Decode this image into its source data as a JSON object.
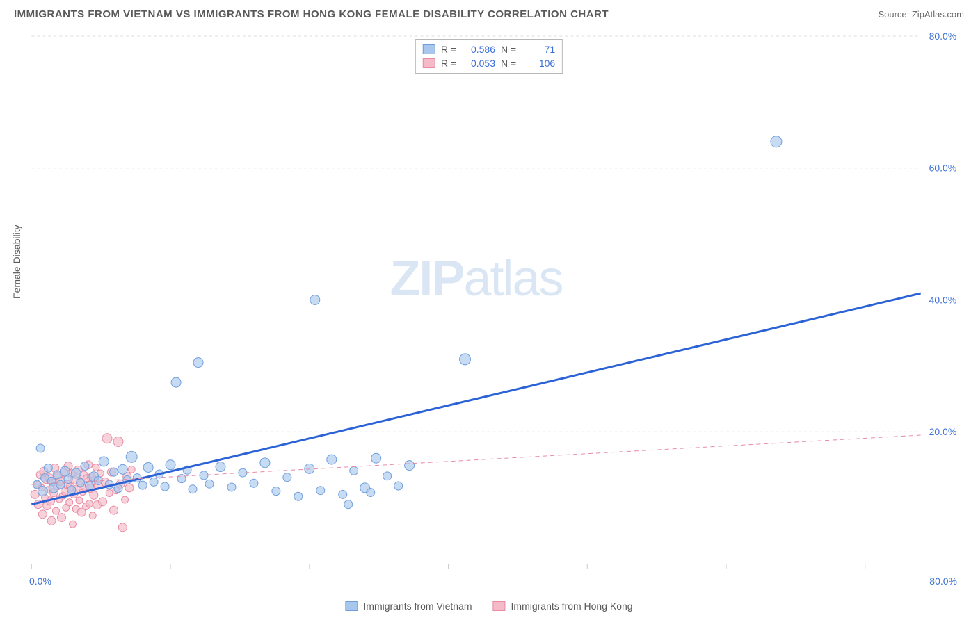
{
  "header": {
    "title": "IMMIGRANTS FROM VIETNAM VS IMMIGRANTS FROM HONG KONG FEMALE DISABILITY CORRELATION CHART",
    "source_prefix": "Source: ",
    "source_name": "ZipAtlas.com"
  },
  "chart": {
    "type": "scatter",
    "ylabel": "Female Disability",
    "watermark_a": "ZIP",
    "watermark_b": "atlas",
    "background_color": "#ffffff",
    "grid_color": "#dddddd",
    "axis_color": "#cccccc",
    "tick_label_color": "#3b6fd6",
    "xlim": [
      0,
      80
    ],
    "ylim": [
      0,
      80
    ],
    "xtick_origin": "0.0%",
    "xtick_max": "80.0%",
    "ytick_labels": [
      "20.0%",
      "40.0%",
      "60.0%",
      "80.0%"
    ],
    "ytick_values": [
      20,
      40,
      60,
      80
    ],
    "xtick_positions": [
      0,
      12.5,
      25,
      37.5,
      50,
      62.5,
      75
    ],
    "series": [
      {
        "name": "Immigrants from Vietnam",
        "key": "vietnam",
        "color_fill": "#a9c7ec",
        "color_stroke": "#6f9fdd",
        "marker_radius_range": [
          5,
          9
        ],
        "regression": {
          "R": "0.586",
          "N": "71",
          "line_color": "#2b63d6",
          "line_width": 3,
          "dash": "none",
          "y_at_x0": 9.0,
          "y_at_x80": 41.0
        },
        "points": [
          {
            "x": 0.5,
            "y": 12,
            "r": 6
          },
          {
            "x": 0.8,
            "y": 17.5,
            "r": 6
          },
          {
            "x": 1.0,
            "y": 11,
            "r": 7
          },
          {
            "x": 1.2,
            "y": 13,
            "r": 6
          },
          {
            "x": 1.5,
            "y": 14.5,
            "r": 6
          },
          {
            "x": 1.8,
            "y": 12.5,
            "r": 6
          },
          {
            "x": 2.0,
            "y": 11.5,
            "r": 7
          },
          {
            "x": 2.3,
            "y": 13.5,
            "r": 6
          },
          {
            "x": 2.6,
            "y": 12,
            "r": 6
          },
          {
            "x": 3.0,
            "y": 14,
            "r": 7
          },
          {
            "x": 3.3,
            "y": 12.8,
            "r": 6
          },
          {
            "x": 3.6,
            "y": 11.2,
            "r": 6
          },
          {
            "x": 4.0,
            "y": 13.7,
            "r": 7
          },
          {
            "x": 4.4,
            "y": 12.3,
            "r": 6
          },
          {
            "x": 4.8,
            "y": 14.8,
            "r": 6
          },
          {
            "x": 5.2,
            "y": 11.8,
            "r": 6
          },
          {
            "x": 5.6,
            "y": 13.2,
            "r": 7
          },
          {
            "x": 6.0,
            "y": 12.6,
            "r": 6
          },
          {
            "x": 6.5,
            "y": 15.5,
            "r": 7
          },
          {
            "x": 7.0,
            "y": 12.0,
            "r": 6
          },
          {
            "x": 7.4,
            "y": 13.9,
            "r": 6
          },
          {
            "x": 7.8,
            "y": 11.4,
            "r": 6
          },
          {
            "x": 8.2,
            "y": 14.3,
            "r": 7
          },
          {
            "x": 8.6,
            "y": 12.7,
            "r": 6
          },
          {
            "x": 9.0,
            "y": 16.2,
            "r": 8
          },
          {
            "x": 9.5,
            "y": 13.0,
            "r": 6
          },
          {
            "x": 10.0,
            "y": 11.9,
            "r": 6
          },
          {
            "x": 10.5,
            "y": 14.6,
            "r": 7
          },
          {
            "x": 11.0,
            "y": 12.4,
            "r": 6
          },
          {
            "x": 11.5,
            "y": 13.6,
            "r": 6
          },
          {
            "x": 12.0,
            "y": 11.7,
            "r": 6
          },
          {
            "x": 12.5,
            "y": 15.0,
            "r": 7
          },
          {
            "x": 13.0,
            "y": 27.5,
            "r": 7
          },
          {
            "x": 13.5,
            "y": 12.9,
            "r": 6
          },
          {
            "x": 14.0,
            "y": 14.2,
            "r": 6
          },
          {
            "x": 14.5,
            "y": 11.3,
            "r": 6
          },
          {
            "x": 15.0,
            "y": 30.5,
            "r": 7
          },
          {
            "x": 15.5,
            "y": 13.4,
            "r": 6
          },
          {
            "x": 16.0,
            "y": 12.1,
            "r": 6
          },
          {
            "x": 17.0,
            "y": 14.7,
            "r": 7
          },
          {
            "x": 18.0,
            "y": 11.6,
            "r": 6
          },
          {
            "x": 19.0,
            "y": 13.8,
            "r": 6
          },
          {
            "x": 20.0,
            "y": 12.2,
            "r": 6
          },
          {
            "x": 21.0,
            "y": 15.3,
            "r": 7
          },
          {
            "x": 22.0,
            "y": 11.0,
            "r": 6
          },
          {
            "x": 23.0,
            "y": 13.1,
            "r": 6
          },
          {
            "x": 24.0,
            "y": 10.2,
            "r": 6
          },
          {
            "x": 25.0,
            "y": 14.4,
            "r": 7
          },
          {
            "x": 25.5,
            "y": 40.0,
            "r": 7
          },
          {
            "x": 26.0,
            "y": 11.1,
            "r": 6
          },
          {
            "x": 27.0,
            "y": 15.8,
            "r": 7
          },
          {
            "x": 28.0,
            "y": 10.5,
            "r": 6
          },
          {
            "x": 28.5,
            "y": 9.0,
            "r": 6
          },
          {
            "x": 29.0,
            "y": 14.1,
            "r": 6
          },
          {
            "x": 30.0,
            "y": 11.5,
            "r": 7
          },
          {
            "x": 30.5,
            "y": 10.8,
            "r": 6
          },
          {
            "x": 31.0,
            "y": 16.0,
            "r": 7
          },
          {
            "x": 32.0,
            "y": 13.3,
            "r": 6
          },
          {
            "x": 33.0,
            "y": 11.8,
            "r": 6
          },
          {
            "x": 34.0,
            "y": 14.9,
            "r": 7
          },
          {
            "x": 39.0,
            "y": 31.0,
            "r": 8
          },
          {
            "x": 67.0,
            "y": 64.0,
            "r": 8
          }
        ]
      },
      {
        "name": "Immigrants from Hong Kong",
        "key": "hongkong",
        "color_fill": "#f4bac8",
        "color_stroke": "#e88ba3",
        "marker_radius_range": [
          5,
          8
        ],
        "regression": {
          "R": "0.053",
          "N": "106",
          "line_color": "#e88ba3",
          "line_width": 1,
          "dash": "6,5",
          "y_at_x0": 12.0,
          "y_at_x80": 19.5
        },
        "points": [
          {
            "x": 0.3,
            "y": 10.5,
            "r": 6
          },
          {
            "x": 0.5,
            "y": 12.0,
            "r": 5
          },
          {
            "x": 0.6,
            "y": 9.0,
            "r": 6
          },
          {
            "x": 0.8,
            "y": 13.5,
            "r": 6
          },
          {
            "x": 0.9,
            "y": 11.5,
            "r": 5
          },
          {
            "x": 1.0,
            "y": 7.5,
            "r": 6
          },
          {
            "x": 1.1,
            "y": 14.0,
            "r": 6
          },
          {
            "x": 1.2,
            "y": 10.0,
            "r": 5
          },
          {
            "x": 1.3,
            "y": 12.8,
            "r": 6
          },
          {
            "x": 1.4,
            "y": 8.8,
            "r": 6
          },
          {
            "x": 1.5,
            "y": 11.2,
            "r": 5
          },
          {
            "x": 1.6,
            "y": 13.0,
            "r": 6
          },
          {
            "x": 1.7,
            "y": 9.5,
            "r": 6
          },
          {
            "x": 1.8,
            "y": 6.5,
            "r": 6
          },
          {
            "x": 1.9,
            "y": 12.3,
            "r": 5
          },
          {
            "x": 2.0,
            "y": 10.8,
            "r": 6
          },
          {
            "x": 2.1,
            "y": 14.5,
            "r": 6
          },
          {
            "x": 2.2,
            "y": 8.0,
            "r": 5
          },
          {
            "x": 2.3,
            "y": 11.8,
            "r": 6
          },
          {
            "x": 2.4,
            "y": 13.3,
            "r": 6
          },
          {
            "x": 2.5,
            "y": 9.8,
            "r": 5
          },
          {
            "x": 2.6,
            "y": 12.5,
            "r": 6
          },
          {
            "x": 2.7,
            "y": 7.0,
            "r": 6
          },
          {
            "x": 2.8,
            "y": 10.3,
            "r": 5
          },
          {
            "x": 2.9,
            "y": 13.8,
            "r": 6
          },
          {
            "x": 3.0,
            "y": 11.0,
            "r": 6
          },
          {
            "x": 3.1,
            "y": 8.5,
            "r": 5
          },
          {
            "x": 3.2,
            "y": 12.0,
            "r": 6
          },
          {
            "x": 3.3,
            "y": 14.8,
            "r": 6
          },
          {
            "x": 3.4,
            "y": 9.3,
            "r": 5
          },
          {
            "x": 3.5,
            "y": 11.6,
            "r": 6
          },
          {
            "x": 3.6,
            "y": 13.6,
            "r": 6
          },
          {
            "x": 3.7,
            "y": 6.0,
            "r": 5
          },
          {
            "x": 3.8,
            "y": 10.6,
            "r": 6
          },
          {
            "x": 3.9,
            "y": 12.7,
            "r": 6
          },
          {
            "x": 4.0,
            "y": 8.3,
            "r": 5
          },
          {
            "x": 4.1,
            "y": 11.3,
            "r": 6
          },
          {
            "x": 4.2,
            "y": 14.2,
            "r": 6
          },
          {
            "x": 4.3,
            "y": 9.6,
            "r": 5
          },
          {
            "x": 4.4,
            "y": 12.2,
            "r": 6
          },
          {
            "x": 4.5,
            "y": 7.8,
            "r": 6
          },
          {
            "x": 4.6,
            "y": 10.9,
            "r": 5
          },
          {
            "x": 4.7,
            "y": 13.4,
            "r": 6
          },
          {
            "x": 4.8,
            "y": 11.7,
            "r": 6
          },
          {
            "x": 4.9,
            "y": 8.7,
            "r": 5
          },
          {
            "x": 5.0,
            "y": 12.9,
            "r": 6
          },
          {
            "x": 5.1,
            "y": 15.0,
            "r": 6
          },
          {
            "x": 5.2,
            "y": 9.1,
            "r": 5
          },
          {
            "x": 5.3,
            "y": 11.4,
            "r": 6
          },
          {
            "x": 5.4,
            "y": 13.1,
            "r": 6
          },
          {
            "x": 5.5,
            "y": 7.3,
            "r": 5
          },
          {
            "x": 5.6,
            "y": 10.4,
            "r": 6
          },
          {
            "x": 5.7,
            "y": 12.6,
            "r": 6
          },
          {
            "x": 5.8,
            "y": 14.6,
            "r": 5
          },
          {
            "x": 5.9,
            "y": 8.9,
            "r": 6
          },
          {
            "x": 6.0,
            "y": 11.9,
            "r": 6
          },
          {
            "x": 6.2,
            "y": 13.7,
            "r": 5
          },
          {
            "x": 6.4,
            "y": 9.4,
            "r": 6
          },
          {
            "x": 6.6,
            "y": 12.4,
            "r": 6
          },
          {
            "x": 6.8,
            "y": 19.0,
            "r": 7
          },
          {
            "x": 7.0,
            "y": 10.7,
            "r": 5
          },
          {
            "x": 7.2,
            "y": 13.9,
            "r": 6
          },
          {
            "x": 7.4,
            "y": 8.1,
            "r": 6
          },
          {
            "x": 7.6,
            "y": 11.1,
            "r": 5
          },
          {
            "x": 7.8,
            "y": 18.5,
            "r": 7
          },
          {
            "x": 8.0,
            "y": 12.1,
            "r": 6
          },
          {
            "x": 8.2,
            "y": 5.5,
            "r": 6
          },
          {
            "x": 8.4,
            "y": 9.7,
            "r": 5
          },
          {
            "x": 8.6,
            "y": 13.2,
            "r": 6
          },
          {
            "x": 8.8,
            "y": 11.5,
            "r": 6
          },
          {
            "x": 9.0,
            "y": 14.3,
            "r": 5
          }
        ]
      }
    ],
    "legend_bottom": [
      {
        "label": "Immigrants from Vietnam",
        "fill": "#a9c7ec",
        "stroke": "#6f9fdd"
      },
      {
        "label": "Immigrants from Hong Kong",
        "fill": "#f4bac8",
        "stroke": "#e88ba3"
      }
    ]
  }
}
